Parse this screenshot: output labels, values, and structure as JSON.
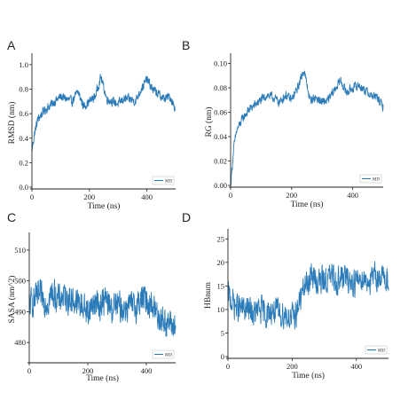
{
  "colors": {
    "series": "#2b7bb9",
    "axis": "#222222",
    "legend_border": "#bbbbbb"
  },
  "chart_data": [
    {
      "panel": "A",
      "type": "line",
      "xlabel": "Time (ns)",
      "ylabel": "RMSD (nm)",
      "xlim": [
        0,
        500
      ],
      "ylim": [
        0.0,
        1.05
      ],
      "xticks": [
        0,
        200,
        400
      ],
      "xtick_labels": [
        "0",
        "200",
        "400"
      ],
      "yticks": [
        0.0,
        0.2,
        0.4,
        0.6,
        0.8,
        1.0
      ],
      "ytick_labels": [
        "0.0",
        "0.2",
        "0.4",
        "0.6",
        "0.8",
        "1.0"
      ],
      "legend": {
        "label": "MD",
        "placement": "bottom-right"
      },
      "series": [
        {
          "name": "MD",
          "x": [
            0,
            10,
            20,
            40,
            60,
            80,
            100,
            120,
            140,
            160,
            180,
            200,
            220,
            240,
            260,
            280,
            300,
            320,
            340,
            360,
            380,
            400,
            420,
            440,
            460,
            480,
            500
          ],
          "y": [
            0.3,
            0.45,
            0.55,
            0.62,
            0.66,
            0.7,
            0.74,
            0.72,
            0.7,
            0.78,
            0.66,
            0.7,
            0.74,
            0.9,
            0.72,
            0.7,
            0.68,
            0.72,
            0.72,
            0.7,
            0.8,
            0.88,
            0.8,
            0.76,
            0.72,
            0.74,
            0.64
          ],
          "noise": 0.05
        }
      ]
    },
    {
      "panel": "B",
      "type": "line",
      "xlabel": "Time (ns)",
      "ylabel": "RG (nm)",
      "xlim": [
        0,
        500
      ],
      "ylim": [
        0.0,
        0.104
      ],
      "xticks": [
        0,
        200,
        400
      ],
      "xtick_labels": [
        "0",
        "200",
        "400"
      ],
      "yticks": [
        0.0,
        0.02,
        0.04,
        0.06,
        0.08,
        0.1
      ],
      "ytick_labels": [
        "0.00",
        "0.02",
        "0.04",
        "0.06",
        "0.08",
        "0.10"
      ],
      "legend": {
        "label": "MD",
        "placement": "bottom-right"
      },
      "series": [
        {
          "name": "MD",
          "x": [
            0,
            10,
            20,
            40,
            60,
            80,
            100,
            120,
            140,
            160,
            180,
            200,
            220,
            240,
            260,
            280,
            300,
            320,
            340,
            360,
            380,
            400,
            420,
            440,
            460,
            480,
            500
          ],
          "y": [
            0.0,
            0.03,
            0.045,
            0.055,
            0.062,
            0.066,
            0.07,
            0.074,
            0.072,
            0.068,
            0.074,
            0.07,
            0.08,
            0.095,
            0.07,
            0.072,
            0.068,
            0.07,
            0.078,
            0.086,
            0.076,
            0.08,
            0.082,
            0.078,
            0.074,
            0.072,
            0.064
          ],
          "noise": 0.005
        }
      ]
    },
    {
      "panel": "C",
      "type": "line",
      "xlabel": "Time (ns)",
      "ylabel": "SASA (nm^2)",
      "xlim": [
        0,
        500
      ],
      "ylim": [
        474,
        514
      ],
      "xticks": [
        0,
        200,
        400
      ],
      "xtick_labels": [
        "0",
        "200",
        "400"
      ],
      "yticks": [
        480,
        490,
        500,
        510
      ],
      "ytick_labels": [
        "480",
        "490",
        "500",
        "510"
      ],
      "legend": {
        "label": "MD",
        "placement": "bottom-right"
      },
      "series": [
        {
          "name": "MD",
          "x": [
            0,
            20,
            40,
            60,
            80,
            100,
            120,
            140,
            160,
            180,
            200,
            220,
            240,
            260,
            280,
            300,
            320,
            340,
            360,
            380,
            400,
            420,
            440,
            460,
            480,
            500
          ],
          "y": [
            492,
            494,
            495,
            493,
            496,
            494,
            495,
            494,
            493,
            492,
            490,
            493,
            492,
            494,
            491,
            492,
            491,
            492,
            491,
            494,
            494,
            492,
            489,
            487,
            486,
            485
          ],
          "noise": 6.5
        }
      ]
    },
    {
      "panel": "D",
      "type": "line",
      "xlabel": "Time (ns)",
      "ylabel": "HBnum",
      "xlim": [
        0,
        500
      ],
      "ylim": [
        0,
        26
      ],
      "xticks": [
        0,
        200,
        400
      ],
      "xtick_labels": [
        "0",
        "200",
        "400"
      ],
      "yticks": [
        0,
        5,
        10,
        15,
        20,
        25
      ],
      "ytick_labels": [
        "0",
        "5",
        "10",
        "15",
        "20",
        "25"
      ],
      "legend": {
        "label": "MD",
        "placement": "bottom-right"
      },
      "series": [
        {
          "name": "MD",
          "x": [
            0,
            20,
            40,
            60,
            80,
            100,
            120,
            140,
            160,
            180,
            200,
            210,
            220,
            230,
            240,
            260,
            280,
            300,
            320,
            340,
            360,
            380,
            400,
            420,
            440,
            460,
            480,
            500
          ],
          "y": [
            13,
            11,
            10,
            10,
            9,
            10,
            9,
            10,
            9,
            9,
            8,
            9,
            11,
            13,
            15,
            17,
            16,
            16,
            17,
            16,
            17,
            16,
            16,
            17,
            16,
            17,
            17,
            16
          ],
          "noise": 4.0
        }
      ]
    }
  ]
}
